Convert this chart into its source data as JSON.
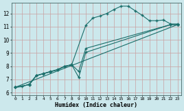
{
  "xlabel": "Humidex (Indice chaleur)",
  "background_color": "#cce8ec",
  "grid_color": "#aacccc",
  "line_color": "#1a6e6a",
  "xlim": [
    -0.5,
    23.5
  ],
  "ylim": [
    5.8,
    12.8
  ],
  "xticks": [
    0,
    1,
    2,
    3,
    4,
    5,
    6,
    7,
    8,
    9,
    10,
    11,
    12,
    13,
    14,
    15,
    16,
    17,
    18,
    19,
    20,
    21,
    22,
    23
  ],
  "yticks": [
    6,
    7,
    8,
    9,
    10,
    11,
    12
  ],
  "lines": [
    {
      "x": [
        0,
        1,
        2,
        3,
        4,
        5,
        6,
        7,
        8,
        10,
        11,
        12,
        13,
        14,
        15,
        16,
        17,
        18,
        19,
        20,
        21,
        22,
        23
      ],
      "y": [
        6.4,
        6.45,
        6.65,
        7.3,
        7.45,
        7.6,
        7.75,
        8.0,
        8.1,
        11.1,
        11.65,
        11.8,
        12.0,
        12.3,
        12.55,
        12.55,
        12.2,
        11.85,
        11.45,
        11.45,
        11.5,
        11.2,
        11.2
      ]
    },
    {
      "x": [
        0,
        2,
        3,
        4,
        5,
        6,
        7,
        8,
        9,
        10,
        22,
        23
      ],
      "y": [
        6.4,
        6.6,
        7.28,
        7.43,
        7.58,
        7.72,
        7.98,
        8.12,
        7.15,
        9.05,
        11.15,
        11.15
      ]
    },
    {
      "x": [
        0,
        2,
        3,
        4,
        5,
        6,
        7,
        8,
        9,
        10,
        22,
        23
      ],
      "y": [
        6.4,
        6.6,
        7.28,
        7.43,
        7.58,
        7.72,
        7.98,
        8.12,
        7.6,
        9.35,
        11.15,
        11.15
      ]
    },
    {
      "x": [
        0,
        23
      ],
      "y": [
        6.4,
        11.15
      ]
    }
  ]
}
